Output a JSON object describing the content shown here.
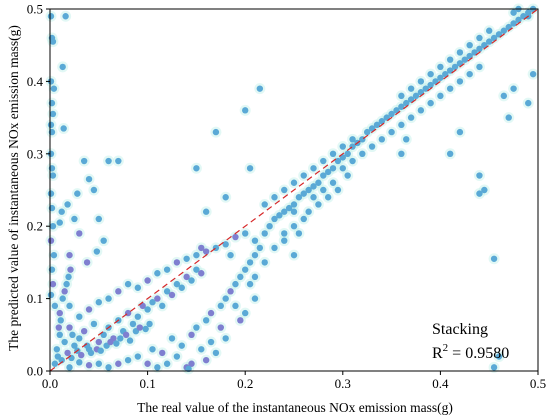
{
  "chart_data": {
    "type": "scatter",
    "title": "",
    "xlabel": "The real value of the instantaneous NOx emission mass(g)",
    "ylabel": "The predicted value of instantaneous NOx emission mass(g)",
    "xlim": [
      0.0,
      0.5
    ],
    "ylim": [
      0.0,
      0.5
    ],
    "xticks": [
      "0.0",
      "0.1",
      "0.2",
      "0.3",
      "0.4",
      "0.5"
    ],
    "yticks": [
      "0.0",
      "0.1",
      "0.2",
      "0.3",
      "0.4",
      "0.5"
    ],
    "grid": false,
    "legend": "none",
    "annotation": {
      "model": "Stacking",
      "r2_prefix": "R",
      "r2_sup": "2",
      "r2_value": " = 0.9580"
    },
    "reference_line": {
      "x": [
        0.0,
        0.5
      ],
      "y": [
        0.0,
        0.5
      ],
      "color": "#d62728",
      "style": "dashed"
    },
    "colors": {
      "point": "#5aa9d6",
      "point_dense": "#7f7fd0",
      "point_glow": "#bff0e8"
    },
    "series": [
      {
        "points": [
          [
            0.001,
            0.49
          ],
          [
            0.002,
            0.46
          ],
          [
            0.003,
            0.455
          ],
          [
            0.001,
            0.4
          ],
          [
            0.004,
            0.39
          ],
          [
            0.002,
            0.37
          ],
          [
            0.003,
            0.355
          ],
          [
            0.001,
            0.34
          ],
          [
            0.002,
            0.33
          ],
          [
            0.014,
            0.335
          ],
          [
            0.016,
            0.49
          ],
          [
            0.013,
            0.42
          ],
          [
            0.001,
            0.3
          ],
          [
            0.002,
            0.28
          ],
          [
            0.003,
            0.27
          ],
          [
            0.001,
            0.245
          ],
          [
            0.002,
            0.225
          ],
          [
            0.003,
            0.2
          ],
          [
            0.001,
            0.18
          ],
          [
            0.004,
            0.16
          ],
          [
            0.002,
            0.14
          ],
          [
            0.003,
            0.12
          ],
          [
            0.001,
            0.105
          ],
          [
            0.005,
            0.09
          ],
          [
            0.012,
            0.22
          ],
          [
            0.018,
            0.23
          ],
          [
            0.01,
            0.205
          ],
          [
            0.02,
            0.16
          ],
          [
            0.025,
            0.21
          ],
          [
            0.028,
            0.245
          ],
          [
            0.03,
            0.19
          ],
          [
            0.035,
            0.29
          ],
          [
            0.04,
            0.265
          ],
          [
            0.045,
            0.25
          ],
          [
            0.05,
            0.21
          ],
          [
            0.055,
            0.18
          ],
          [
            0.06,
            0.29
          ],
          [
            0.07,
            0.29
          ],
          [
            0.048,
            0.165
          ],
          [
            0.038,
            0.15
          ],
          [
            0.01,
            0.05
          ],
          [
            0.015,
            0.04
          ],
          [
            0.02,
            0.06
          ],
          [
            0.025,
            0.035
          ],
          [
            0.03,
            0.045
          ],
          [
            0.035,
            0.055
          ],
          [
            0.04,
            0.03
          ],
          [
            0.045,
            0.065
          ],
          [
            0.05,
            0.04
          ],
          [
            0.055,
            0.05
          ],
          [
            0.06,
            0.06
          ],
          [
            0.065,
            0.045
          ],
          [
            0.07,
            0.07
          ],
          [
            0.075,
            0.055
          ],
          [
            0.08,
            0.08
          ],
          [
            0.085,
            0.065
          ],
          [
            0.09,
            0.075
          ],
          [
            0.095,
            0.09
          ],
          [
            0.1,
            0.085
          ],
          [
            0.105,
            0.095
          ],
          [
            0.11,
            0.1
          ],
          [
            0.115,
            0.09
          ],
          [
            0.12,
            0.11
          ],
          [
            0.125,
            0.105
          ],
          [
            0.13,
            0.12
          ],
          [
            0.135,
            0.115
          ],
          [
            0.14,
            0.13
          ],
          [
            0.145,
            0.125
          ],
          [
            0.15,
            0.14
          ],
          [
            0.155,
            0.135
          ],
          [
            0.008,
            0.02
          ],
          [
            0.012,
            0.015
          ],
          [
            0.018,
            0.025
          ],
          [
            0.022,
            0.018
          ],
          [
            0.028,
            0.028
          ],
          [
            0.032,
            0.022
          ],
          [
            0.038,
            0.035
          ],
          [
            0.042,
            0.025
          ],
          [
            0.048,
            0.03
          ],
          [
            0.052,
            0.028
          ],
          [
            0.058,
            0.035
          ],
          [
            0.062,
            0.04
          ],
          [
            0.068,
            0.038
          ],
          [
            0.072,
            0.045
          ],
          [
            0.078,
            0.05
          ],
          [
            0.082,
            0.042
          ],
          [
            0.088,
            0.055
          ],
          [
            0.092,
            0.06
          ],
          [
            0.098,
            0.058
          ],
          [
            0.102,
            0.065
          ],
          [
            0.01,
            0.08
          ],
          [
            0.02,
            0.09
          ],
          [
            0.03,
            0.075
          ],
          [
            0.04,
            0.085
          ],
          [
            0.05,
            0.095
          ],
          [
            0.06,
            0.1
          ],
          [
            0.07,
            0.11
          ],
          [
            0.08,
            0.12
          ],
          [
            0.09,
            0.115
          ],
          [
            0.1,
            0.125
          ],
          [
            0.11,
            0.135
          ],
          [
            0.12,
            0.14
          ],
          [
            0.13,
            0.15
          ],
          [
            0.14,
            0.155
          ],
          [
            0.15,
            0.16
          ],
          [
            0.16,
            0.165
          ],
          [
            0.17,
            0.17
          ],
          [
            0.18,
            0.175
          ],
          [
            0.19,
            0.185
          ],
          [
            0.2,
            0.19
          ],
          [
            0.105,
            0.03
          ],
          [
            0.115,
            0.025
          ],
          [
            0.12,
            0.01
          ],
          [
            0.13,
            0.02
          ],
          [
            0.14,
            0.005
          ],
          [
            0.135,
            0.035
          ],
          [
            0.125,
            0.045
          ],
          [
            0.145,
            0.05
          ],
          [
            0.15,
            0.06
          ],
          [
            0.16,
            0.07
          ],
          [
            0.165,
            0.08
          ],
          [
            0.175,
            0.09
          ],
          [
            0.18,
            0.1
          ],
          [
            0.185,
            0.11
          ],
          [
            0.19,
            0.12
          ],
          [
            0.195,
            0.13
          ],
          [
            0.2,
            0.14
          ],
          [
            0.205,
            0.15
          ],
          [
            0.21,
            0.16
          ],
          [
            0.215,
            0.17
          ],
          [
            0.21,
            0.18
          ],
          [
            0.22,
            0.19
          ],
          [
            0.225,
            0.2
          ],
          [
            0.23,
            0.21
          ],
          [
            0.235,
            0.215
          ],
          [
            0.24,
            0.22
          ],
          [
            0.245,
            0.225
          ],
          [
            0.25,
            0.23
          ],
          [
            0.255,
            0.24
          ],
          [
            0.26,
            0.245
          ],
          [
            0.265,
            0.25
          ],
          [
            0.27,
            0.255
          ],
          [
            0.275,
            0.26
          ],
          [
            0.28,
            0.27
          ],
          [
            0.285,
            0.275
          ],
          [
            0.29,
            0.28
          ],
          [
            0.295,
            0.29
          ],
          [
            0.3,
            0.295
          ],
          [
            0.305,
            0.3
          ],
          [
            0.31,
            0.31
          ],
          [
            0.315,
            0.315
          ],
          [
            0.32,
            0.32
          ],
          [
            0.325,
            0.33
          ],
          [
            0.33,
            0.335
          ],
          [
            0.335,
            0.34
          ],
          [
            0.34,
            0.345
          ],
          [
            0.345,
            0.35
          ],
          [
            0.35,
            0.355
          ],
          [
            0.355,
            0.36
          ],
          [
            0.36,
            0.365
          ],
          [
            0.365,
            0.37
          ],
          [
            0.37,
            0.375
          ],
          [
            0.375,
            0.38
          ],
          [
            0.38,
            0.385
          ],
          [
            0.385,
            0.39
          ],
          [
            0.39,
            0.395
          ],
          [
            0.395,
            0.4
          ],
          [
            0.4,
            0.405
          ],
          [
            0.405,
            0.41
          ],
          [
            0.41,
            0.415
          ],
          [
            0.415,
            0.42
          ],
          [
            0.42,
            0.425
          ],
          [
            0.425,
            0.43
          ],
          [
            0.43,
            0.435
          ],
          [
            0.435,
            0.44
          ],
          [
            0.44,
            0.445
          ],
          [
            0.445,
            0.45
          ],
          [
            0.45,
            0.455
          ],
          [
            0.455,
            0.46
          ],
          [
            0.46,
            0.465
          ],
          [
            0.465,
            0.47
          ],
          [
            0.47,
            0.475
          ],
          [
            0.475,
            0.48
          ],
          [
            0.48,
            0.485
          ],
          [
            0.485,
            0.49
          ],
          [
            0.49,
            0.495
          ],
          [
            0.495,
            0.5
          ],
          [
            0.475,
            0.495
          ],
          [
            0.48,
            0.5
          ],
          [
            0.49,
            0.49
          ],
          [
            0.25,
            0.22
          ],
          [
            0.26,
            0.21
          ],
          [
            0.27,
            0.24
          ],
          [
            0.28,
            0.25
          ],
          [
            0.29,
            0.26
          ],
          [
            0.3,
            0.28
          ],
          [
            0.31,
            0.29
          ],
          [
            0.32,
            0.3
          ],
          [
            0.33,
            0.31
          ],
          [
            0.34,
            0.32
          ],
          [
            0.22,
            0.23
          ],
          [
            0.23,
            0.24
          ],
          [
            0.24,
            0.25
          ],
          [
            0.25,
            0.26
          ],
          [
            0.26,
            0.27
          ],
          [
            0.27,
            0.28
          ],
          [
            0.28,
            0.29
          ],
          [
            0.29,
            0.3
          ],
          [
            0.3,
            0.31
          ],
          [
            0.31,
            0.32
          ],
          [
            0.35,
            0.33
          ],
          [
            0.36,
            0.34
          ],
          [
            0.37,
            0.35
          ],
          [
            0.38,
            0.36
          ],
          [
            0.39,
            0.37
          ],
          [
            0.4,
            0.38
          ],
          [
            0.41,
            0.39
          ],
          [
            0.42,
            0.4
          ],
          [
            0.43,
            0.41
          ],
          [
            0.44,
            0.42
          ],
          [
            0.36,
            0.38
          ],
          [
            0.37,
            0.39
          ],
          [
            0.38,
            0.4
          ],
          [
            0.39,
            0.41
          ],
          [
            0.4,
            0.42
          ],
          [
            0.41,
            0.43
          ],
          [
            0.42,
            0.44
          ],
          [
            0.43,
            0.45
          ],
          [
            0.44,
            0.46
          ],
          [
            0.45,
            0.47
          ],
          [
            0.2,
            0.36
          ],
          [
            0.215,
            0.39
          ],
          [
            0.205,
            0.28
          ],
          [
            0.17,
            0.33
          ],
          [
            0.16,
            0.22
          ],
          [
            0.15,
            0.28
          ],
          [
            0.18,
            0.24
          ],
          [
            0.155,
            0.17
          ],
          [
            0.185,
            0.16
          ],
          [
            0.24,
            0.19
          ],
          [
            0.36,
            0.3
          ],
          [
            0.365,
            0.32
          ],
          [
            0.41,
            0.3
          ],
          [
            0.42,
            0.33
          ],
          [
            0.44,
            0.27
          ],
          [
            0.445,
            0.25
          ],
          [
            0.44,
            0.245
          ],
          [
            0.455,
            0.155
          ],
          [
            0.475,
            0.39
          ],
          [
            0.49,
            0.37
          ],
          [
            0.465,
            0.38
          ],
          [
            0.47,
            0.35
          ],
          [
            0.495,
            0.41
          ],
          [
            0.46,
            0.02
          ],
          [
            0.455,
            0.005
          ],
          [
            0.145,
            0.01
          ],
          [
            0.142,
            0.003
          ],
          [
            0.25,
            0.16
          ],
          [
            0.205,
            0.12
          ],
          [
            0.21,
            0.1
          ],
          [
            0.19,
            0.09
          ],
          [
            0.175,
            0.06
          ],
          [
            0.165,
            0.04
          ],
          [
            0.155,
            0.03
          ],
          [
            0.16,
            0.015
          ],
          [
            0.17,
            0.025
          ],
          [
            0.18,
            0.045
          ],
          [
            0.195,
            0.07
          ],
          [
            0.2,
            0.08
          ],
          [
            0.21,
            0.13
          ],
          [
            0.22,
            0.15
          ],
          [
            0.23,
            0.17
          ],
          [
            0.24,
            0.18
          ],
          [
            0.25,
            0.2
          ],
          [
            0.255,
            0.19
          ],
          [
            0.265,
            0.22
          ],
          [
            0.275,
            0.23
          ],
          [
            0.285,
            0.24
          ],
          [
            0.295,
            0.25
          ],
          [
            0.305,
            0.27
          ],
          [
            0.005,
            0.01
          ],
          [
            0.007,
            0.03
          ],
          [
            0.009,
            0.06
          ],
          [
            0.011,
            0.07
          ],
          [
            0.013,
            0.1
          ],
          [
            0.015,
            0.11
          ],
          [
            0.017,
            0.12
          ],
          [
            0.019,
            0.13
          ],
          [
            0.021,
            0.14
          ],
          [
            0.023,
            0.05
          ],
          [
            0.06,
            0.005
          ],
          [
            0.07,
            0.01
          ],
          [
            0.08,
            0.015
          ],
          [
            0.09,
            0.02
          ],
          [
            0.1,
            0.01
          ],
          [
            0.11,
            0.005
          ],
          [
            0.05,
            0.01
          ],
          [
            0.04,
            0.008
          ],
          [
            0.03,
            0.012
          ],
          [
            0.02,
            0.005
          ]
        ]
      }
    ]
  }
}
